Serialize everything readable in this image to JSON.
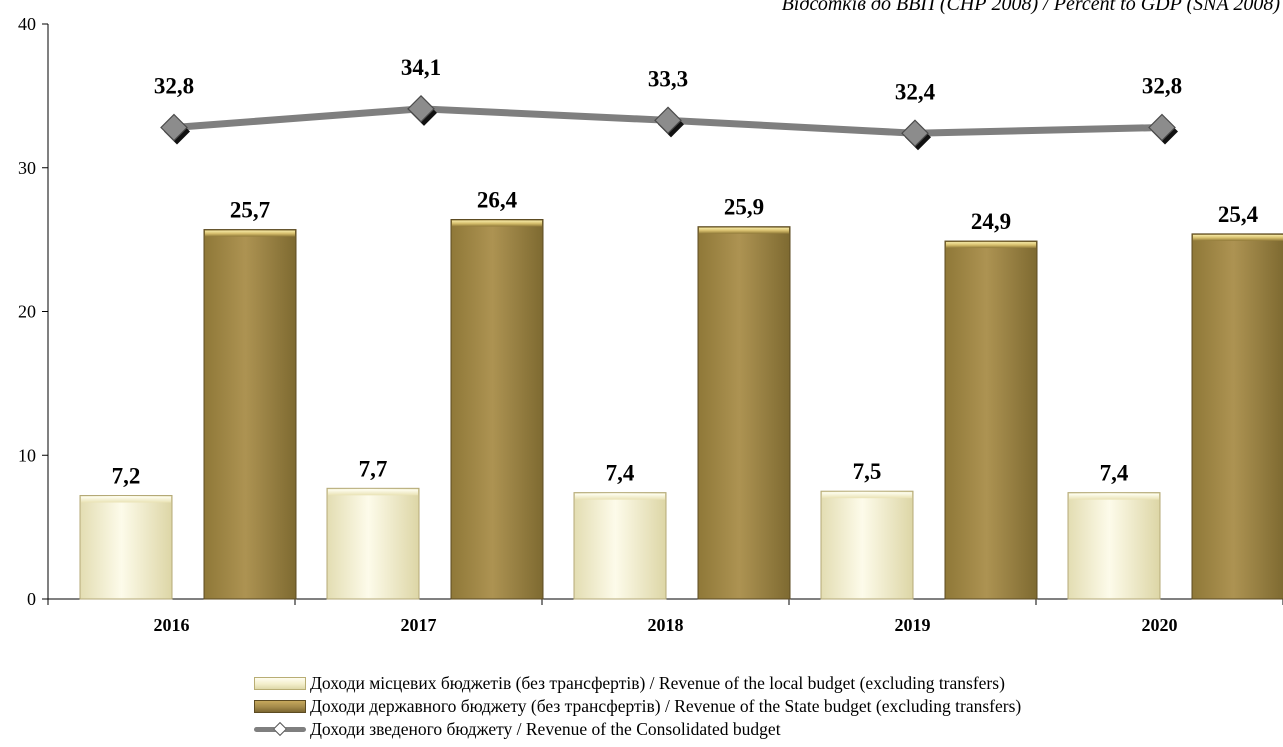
{
  "subtitle": "Відсотків до ВВП (СНР 2008) / Percent to GDP (SNA 2008)",
  "colors": {
    "local": "#efe9c0",
    "state": "#a58c4b",
    "consolidated": "#7f7f7f",
    "marker": "#8c8c8c"
  },
  "chart_data": {
    "type": "bar",
    "categories": [
      "2016",
      "2017",
      "2018",
      "2019",
      "2020"
    ],
    "ylim": [
      0,
      40
    ],
    "yticks": [
      0,
      10,
      20,
      30,
      40
    ],
    "series": [
      {
        "name": "Доходи місцевих бюджетів (без трансфертів) / Revenue of the local budget (excluding transfers)",
        "type": "bar",
        "values": [
          7.2,
          7.7,
          7.4,
          7.5,
          7.4
        ],
        "labels": [
          "7,2",
          "7,7",
          "7,4",
          "7,5",
          "7,4"
        ]
      },
      {
        "name": "Доходи державного бюджету (без трансфертів) / Revenue of the State budget (excluding transfers)",
        "type": "bar",
        "values": [
          25.7,
          26.4,
          25.9,
          24.9,
          25.4
        ],
        "labels": [
          "25,7",
          "26,4",
          "25,9",
          "24,9",
          "25,4"
        ]
      },
      {
        "name": "Доходи зведеного бюджету / Revenue of the Consolidated budget",
        "type": "line",
        "values": [
          32.8,
          34.1,
          33.3,
          32.4,
          32.8
        ],
        "labels": [
          "32,8",
          "34,1",
          "33,3",
          "32,4",
          "32,8"
        ]
      }
    ],
    "grid": false,
    "legend_position": "bottom"
  }
}
